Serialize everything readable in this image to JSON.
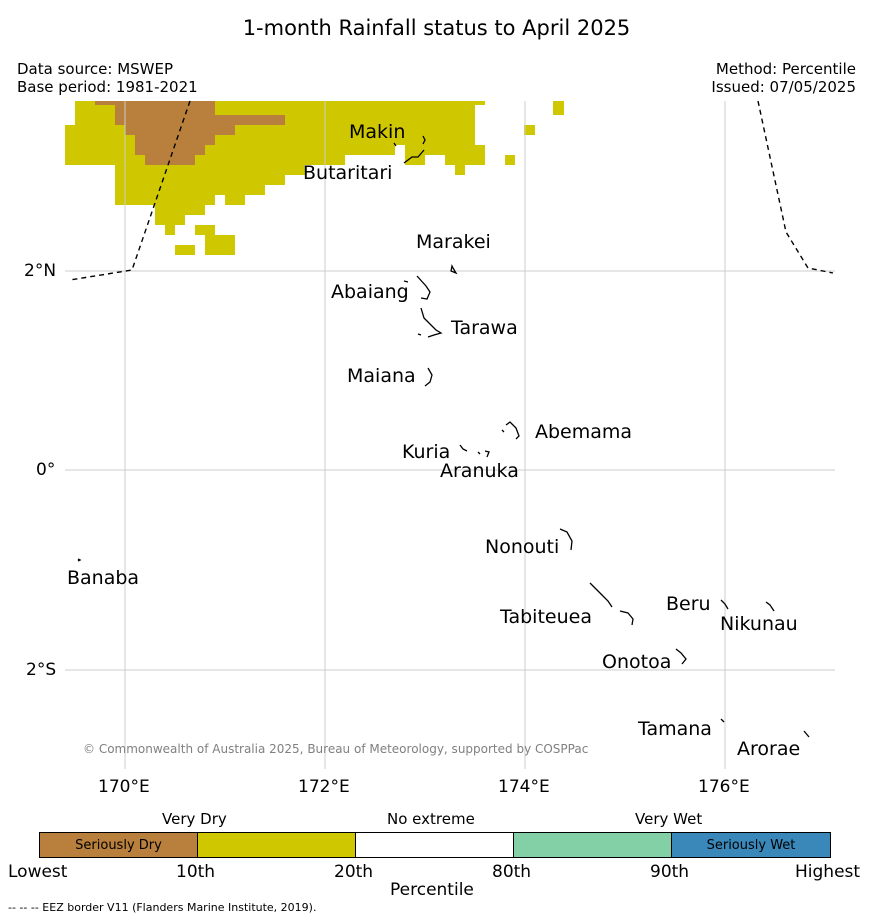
{
  "title": "1-month Rainfall status to April 2025",
  "info": {
    "data_source": "Data source: MSWEP",
    "base_period": "Base period: 1981-2021",
    "method": "Method: Percentile",
    "issued": "Issued: 07/05/2025"
  },
  "map": {
    "longitude_ticks": [
      "170°E",
      "172°E",
      "174°E",
      "176°E"
    ],
    "latitude_ticks": [
      "2°N",
      "0°",
      "2°S"
    ],
    "places": {
      "makin": "Makin",
      "butaritari": "Butaritari",
      "marakei": "Marakei",
      "abaiang": "Abaiang",
      "tarawa": "Tarawa",
      "maiana": "Maiana",
      "abemama": "Abemama",
      "kuria": "Kuria",
      "aranuka": "Aranuka",
      "nonouti": "Nonouti",
      "banaba": "Banaba",
      "beru": "Beru",
      "nikunau": "Nikunau",
      "tabiteuea": "Tabiteuea",
      "onotoa": "Onotoa",
      "tamana": "Tamana",
      "arorae": "Arorae"
    },
    "copyright": "© Commonwealth of Australia 2025, Bureau of Meteorology, supported by COSPPac",
    "colors": {
      "seriously_dry": "#b97f3c",
      "very_dry": "#cfc800",
      "no_extreme": "#ffffff",
      "very_wet": "#83d0a7",
      "seriously_wet": "#3a87ba",
      "gridline": "#cccccc"
    }
  },
  "colorbar": {
    "top_labels": {
      "very_dry": "Very Dry",
      "no_extreme": "No extreme",
      "very_wet": "Very Wet"
    },
    "segment_labels": {
      "seriously_dry": "Seriously Dry",
      "seriously_wet": "Seriously Wet"
    },
    "ticks": [
      "Lowest",
      "10th",
      "20th",
      "80th",
      "90th",
      "Highest"
    ],
    "axis_label": "Percentile"
  },
  "footnote": "--  --  -- EEZ border V11 (Flanders Marine Institute, 2019)."
}
